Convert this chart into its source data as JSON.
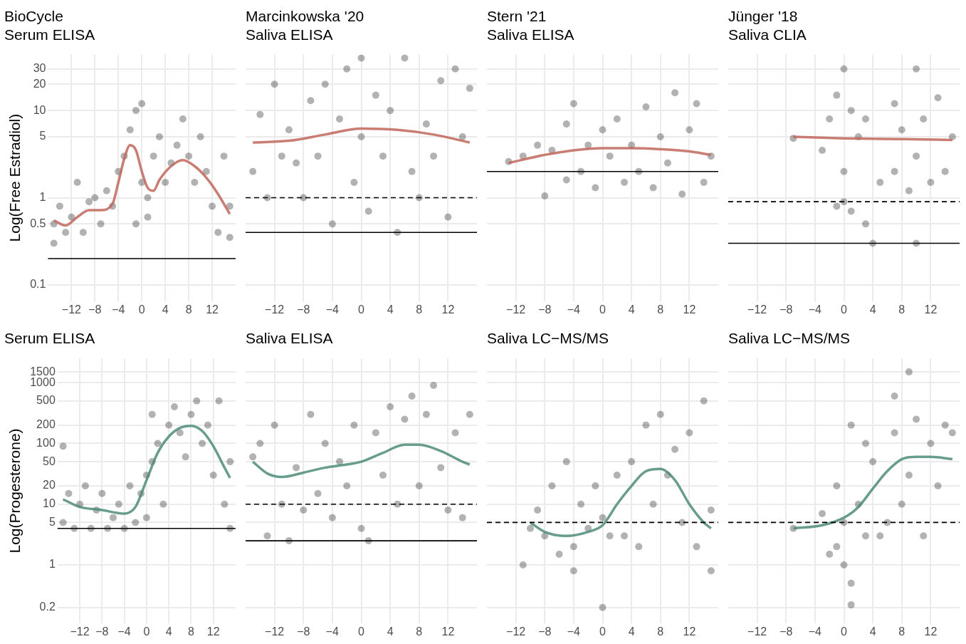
{
  "chart_data": [
    {
      "type": "scatter",
      "title": "BioCycle\nSerum ELISA",
      "ylabel": "Log(Free Estradiol)",
      "log": "y",
      "grid": true,
      "xlim": [
        -16,
        16
      ],
      "xticks": [
        {
          "value": -12,
          "label": "−12"
        },
        {
          "value": -8,
          "label": "−8"
        },
        {
          "value": -4,
          "label": "−4"
        },
        0,
        4,
        8,
        12
      ],
      "ylim": [
        0.065,
        44
      ],
      "yticks": [
        0.1,
        0.5,
        1,
        5,
        10,
        20,
        30
      ],
      "series": [
        {
          "marker": "circle",
          "color": "#000000",
          "x": [
            -15,
            -15,
            -14,
            -13,
            -12,
            -11,
            -10,
            -9,
            -8,
            -7,
            -6,
            -5,
            -4,
            -3,
            -2,
            -1,
            -1,
            0,
            0,
            1,
            1,
            2,
            3,
            4,
            5,
            6,
            7,
            8,
            9,
            10,
            11,
            12,
            13,
            14,
            15,
            15
          ],
          "values": [
            0.5,
            0.3,
            0.8,
            0.4,
            0.6,
            1.5,
            0.4,
            0.9,
            1,
            0.5,
            1.2,
            0.8,
            2,
            3,
            6,
            10,
            0.5,
            12,
            1.5,
            0.6,
            1,
            3,
            5,
            1.5,
            2.5,
            4,
            8,
            3,
            1.5,
            5,
            2,
            0.8,
            0.4,
            3,
            0.8,
            0.35
          ]
        },
        {
          "type": "line",
          "marker": "none",
          "color": "#c0665a",
          "x": [
            -15,
            -13,
            -11,
            -9,
            -7,
            -5,
            -4,
            -3,
            -2,
            -1,
            0,
            1,
            2,
            3,
            5,
            7,
            9,
            11,
            13,
            15
          ],
          "values": [
            0.55,
            0.48,
            0.6,
            0.72,
            0.72,
            0.85,
            1.5,
            2.8,
            4,
            3.5,
            2,
            1.3,
            1.2,
            1.6,
            2.3,
            2.7,
            2.3,
            1.7,
            1.1,
            0.65
          ]
        }
      ],
      "ref_lines": [
        {
          "axis": "y",
          "value": 0.2,
          "line_style": "solid"
        }
      ]
    },
    {
      "type": "scatter",
      "title": "Marcinkowska '20\nSaliva ELISA",
      "log": "y",
      "grid": true,
      "tick_labels": "x",
      "xlim": [
        -16,
        16
      ],
      "xticks": [
        {
          "value": -12,
          "label": "−12"
        },
        {
          "value": -8,
          "label": "−8"
        },
        {
          "value": -4,
          "label": "−4"
        },
        0,
        4,
        8,
        12
      ],
      "ylim": [
        0.065,
        44
      ],
      "yticks": [
        0.1,
        0.5,
        1,
        5,
        10,
        20,
        30
      ],
      "series": [
        {
          "marker": "circle",
          "color": "#000000",
          "x": [
            -15,
            -14,
            -13,
            -12,
            -11,
            -10,
            -9,
            -8,
            -7,
            -6,
            -5,
            -4,
            -3,
            -2,
            -1,
            0,
            0,
            1,
            2,
            3,
            4,
            5,
            6,
            7,
            8,
            9,
            10,
            11,
            12,
            13,
            14,
            15
          ],
          "values": [
            2,
            9,
            1,
            20,
            3,
            6,
            2.5,
            1,
            13,
            3,
            20,
            0.5,
            8,
            30,
            1.5,
            40,
            5,
            0.7,
            15,
            3,
            10,
            0.4,
            40,
            2,
            1,
            7,
            3,
            22,
            0.6,
            30,
            5,
            18
          ]
        },
        {
          "type": "line",
          "marker": "none",
          "color": "#c0665a",
          "x": [
            -15,
            -10,
            -5,
            0,
            5,
            10,
            15
          ],
          "values": [
            4.3,
            4.5,
            5.3,
            6.2,
            6,
            5.3,
            4.3
          ]
        }
      ],
      "ref_lines": [
        {
          "axis": "y",
          "value": 1,
          "line_style": "dashed"
        },
        {
          "axis": "y",
          "value": 0.4,
          "line_style": "solid"
        }
      ]
    },
    {
      "type": "scatter",
      "title": "Stern '21\nSaliva ELISA",
      "log": "y",
      "grid": true,
      "tick_labels": "x",
      "xlim": [
        -16,
        16
      ],
      "xticks": [
        {
          "value": -12,
          "label": "−12"
        },
        {
          "value": -8,
          "label": "−8"
        },
        {
          "value": -4,
          "label": "−4"
        },
        0,
        4,
        8,
        12
      ],
      "ylim": [
        0.065,
        44
      ],
      "yticks": [
        0.1,
        0.5,
        1,
        5,
        10,
        20,
        30
      ],
      "series": [
        {
          "marker": "circle",
          "color": "#000000",
          "x": [
            -13,
            -11,
            -9,
            -8,
            -7,
            -5,
            -5,
            -4,
            -3,
            -2,
            -1,
            0,
            1,
            2,
            3,
            4,
            5,
            6,
            7,
            8,
            9,
            10,
            11,
            12,
            13,
            14,
            15
          ],
          "values": [
            2.6,
            3,
            4,
            1.05,
            3.5,
            7,
            1.6,
            12,
            2,
            4,
            1.3,
            6,
            3,
            8,
            1.5,
            4,
            2,
            11,
            1.3,
            5,
            2.5,
            16,
            1.1,
            6,
            12,
            1.5,
            3
          ]
        },
        {
          "type": "line",
          "marker": "none",
          "color": "#c0665a",
          "x": [
            -13,
            -8,
            -4,
            0,
            4,
            8,
            12,
            15
          ],
          "values": [
            2.5,
            3.1,
            3.5,
            3.7,
            3.7,
            3.6,
            3.4,
            3.1
          ]
        }
      ],
      "ref_lines": [
        {
          "axis": "y",
          "value": 2,
          "line_style": "solid"
        }
      ]
    },
    {
      "type": "scatter",
      "title": "Jünger '18\nSaliva CLIA",
      "log": "y",
      "grid": true,
      "tick_labels": "x",
      "xlim": [
        -16,
        16
      ],
      "xticks": [
        {
          "value": -12,
          "label": "−12"
        },
        {
          "value": -8,
          "label": "−8"
        },
        {
          "value": -4,
          "label": "−4"
        },
        0,
        4,
        8,
        12
      ],
      "ylim": [
        0.065,
        44
      ],
      "yticks": [
        0.1,
        0.5,
        1,
        5,
        10,
        20,
        30
      ],
      "series": [
        {
          "marker": "circle",
          "color": "#000000",
          "x": [
            -7,
            -3,
            -2,
            -1,
            -1,
            0,
            0,
            0,
            1,
            1,
            2,
            3,
            3,
            4,
            5,
            7,
            7,
            8,
            9,
            10,
            10,
            10,
            11,
            12,
            13,
            14,
            15
          ],
          "values": [
            4.8,
            3.5,
            8,
            0.8,
            15,
            30,
            2,
            0.9,
            0.7,
            10,
            5,
            0.5,
            8,
            0.3,
            1.5,
            12,
            2,
            6,
            1.2,
            30,
            0.3,
            3,
            8,
            1.5,
            14,
            2,
            5
          ]
        },
        {
          "type": "line",
          "marker": "none",
          "color": "#c0665a",
          "x": [
            -7,
            0,
            8,
            15
          ],
          "values": [
            5,
            4.8,
            4.7,
            4.6
          ]
        }
      ],
      "ref_lines": [
        {
          "axis": "y",
          "value": 0.9,
          "line_style": "dashed"
        },
        {
          "axis": "y",
          "value": 0.3,
          "line_style": "solid"
        }
      ]
    },
    {
      "type": "scatter",
      "title": "Serum ELISA",
      "ylabel": "Log(Progesterone)",
      "log": "y",
      "grid": true,
      "xlim": [
        -16,
        16
      ],
      "xticks": [
        {
          "value": -12,
          "label": "−12"
        },
        {
          "value": -8,
          "label": "−8"
        },
        {
          "value": -4,
          "label": "−4"
        },
        0,
        4,
        8,
        12
      ],
      "ylim": [
        0.11,
        2500
      ],
      "yticks": [
        0.2,
        1,
        5,
        10,
        20,
        50,
        100,
        200,
        500,
        1000,
        1500
      ],
      "series": [
        {
          "marker": "circle",
          "color": "#000000",
          "x": [
            -15,
            -15,
            -14,
            -13,
            -12,
            -11,
            -10,
            -9,
            -8,
            -7,
            -6,
            -5,
            -4,
            -3,
            -2,
            -1,
            0,
            0,
            1,
            1,
            2,
            3,
            4,
            5,
            6,
            7,
            8,
            9,
            10,
            11,
            12,
            13,
            14,
            15,
            15
          ],
          "values": [
            90,
            5,
            15,
            4,
            10,
            20,
            4,
            8,
            15,
            4,
            6,
            10,
            4,
            20,
            5,
            15,
            30,
            6,
            50,
            300,
            100,
            10,
            200,
            400,
            150,
            60,
            300,
            500,
            100,
            200,
            30,
            500,
            10,
            50,
            4
          ]
        },
        {
          "type": "line",
          "marker": "none",
          "color": "#4d8c7a",
          "x": [
            -15,
            -12,
            -8,
            -4,
            -2,
            0,
            2,
            4,
            6,
            8,
            10,
            12,
            14,
            15
          ],
          "values": [
            12,
            9,
            8,
            7,
            9,
            25,
            70,
            130,
            180,
            195,
            160,
            90,
            40,
            27
          ]
        }
      ],
      "ref_lines": [
        {
          "axis": "y",
          "value": 4,
          "line_style": "solid"
        }
      ]
    },
    {
      "type": "scatter",
      "title": "Saliva ELISA",
      "log": "y",
      "grid": true,
      "tick_labels": "x",
      "xlim": [
        -16,
        16
      ],
      "xticks": [
        {
          "value": -12,
          "label": "−12"
        },
        {
          "value": -8,
          "label": "−8"
        },
        {
          "value": -4,
          "label": "−4"
        },
        0,
        4,
        8,
        12
      ],
      "ylim": [
        0.11,
        2500
      ],
      "yticks": [
        0.2,
        1,
        5,
        10,
        20,
        50,
        100,
        200,
        500,
        1000,
        1500
      ],
      "series": [
        {
          "marker": "circle",
          "color": "#000000",
          "x": [
            -15,
            -14,
            -13,
            -12,
            -11,
            -10,
            -9,
            -8,
            -7,
            -6,
            -5,
            -4,
            -3,
            -2,
            -1,
            0,
            1,
            2,
            3,
            4,
            5,
            6,
            7,
            8,
            9,
            10,
            11,
            12,
            13,
            14,
            15
          ],
          "values": [
            60,
            100,
            3,
            200,
            10,
            2.5,
            40,
            8,
            300,
            15,
            100,
            6,
            50,
            20,
            200,
            4,
            2.5,
            150,
            30,
            400,
            10,
            250,
            600,
            20,
            300,
            900,
            40,
            8,
            150,
            6,
            300
          ]
        },
        {
          "type": "line",
          "marker": "none",
          "color": "#4d8c7a",
          "x": [
            -15,
            -13,
            -11,
            -8,
            -5,
            -2,
            0,
            3,
            6,
            8,
            11,
            14,
            15
          ],
          "values": [
            50,
            32,
            28,
            33,
            40,
            45,
            50,
            70,
            95,
            95,
            75,
            50,
            45
          ]
        }
      ],
      "ref_lines": [
        {
          "axis": "y",
          "value": 10,
          "line_style": "dashed"
        },
        {
          "axis": "y",
          "value": 2.5,
          "line_style": "solid"
        }
      ]
    },
    {
      "type": "scatter",
      "title": "Saliva LC−MS/MS",
      "log": "y",
      "grid": true,
      "tick_labels": "x",
      "xlim": [
        -16,
        16
      ],
      "xticks": [
        {
          "value": -12,
          "label": "−12"
        },
        {
          "value": -8,
          "label": "−8"
        },
        {
          "value": -4,
          "label": "−4"
        },
        0,
        4,
        8,
        12
      ],
      "ylim": [
        0.11,
        2500
      ],
      "yticks": [
        0.2,
        1,
        5,
        10,
        20,
        50,
        100,
        200,
        500,
        1000,
        1500
      ],
      "series": [
        {
          "marker": "circle",
          "color": "#000000",
          "x": [
            -11,
            -10,
            -9,
            -8,
            -7,
            -6,
            -5,
            -4,
            -4,
            -3,
            -2,
            -1,
            0,
            0,
            1,
            2,
            3,
            4,
            5,
            6,
            7,
            8,
            9,
            10,
            11,
            12,
            13,
            14,
            15,
            15
          ],
          "values": [
            1,
            4,
            8,
            3,
            20,
            1.5,
            50,
            0.8,
            2,
            10,
            4,
            20,
            0.2,
            6,
            3,
            30,
            3,
            50,
            2,
            200,
            10,
            300,
            30,
            80,
            5,
            150,
            2,
            500,
            0.8,
            8
          ]
        },
        {
          "type": "line",
          "marker": "none",
          "color": "#4d8c7a",
          "x": [
            -10,
            -8,
            -5,
            -2,
            0,
            2,
            4,
            6,
            8,
            10,
            12,
            14,
            15
          ],
          "values": [
            5,
            3.5,
            3,
            3.5,
            4.5,
            10,
            20,
            35,
            38,
            25,
            10,
            5,
            4
          ]
        }
      ],
      "ref_lines": [
        {
          "axis": "y",
          "value": 5,
          "line_style": "dashed"
        }
      ]
    },
    {
      "type": "scatter",
      "title": "Saliva LC−MS/MS",
      "log": "y",
      "grid": true,
      "tick_labels": "x",
      "xlim": [
        -16,
        16
      ],
      "xticks": [
        {
          "value": -12,
          "label": "−12"
        },
        {
          "value": -8,
          "label": "−8"
        },
        {
          "value": -4,
          "label": "−4"
        },
        0,
        4,
        8,
        12
      ],
      "ylim": [
        0.11,
        2500
      ],
      "yticks": [
        0.2,
        1,
        5,
        10,
        20,
        50,
        100,
        200,
        500,
        1000,
        1500
      ],
      "series": [
        {
          "marker": "circle",
          "color": "#000000",
          "x": [
            -7,
            -3,
            -2,
            -1,
            -1,
            0,
            0,
            1,
            1,
            1,
            2,
            3,
            3,
            4,
            5,
            6,
            7,
            7,
            8,
            9,
            9,
            10,
            11,
            12,
            13,
            14,
            15
          ],
          "values": [
            4,
            7,
            1.5,
            20,
            2,
            5,
            1,
            200,
            0.5,
            0.22,
            10,
            100,
            3,
            50,
            3,
            5,
            600,
            150,
            10,
            1500,
            30,
            250,
            3,
            100,
            20,
            200,
            150
          ]
        },
        {
          "type": "line",
          "marker": "none",
          "color": "#4d8c7a",
          "x": [
            -7,
            -3,
            0,
            2,
            4,
            6,
            8,
            10,
            12,
            15
          ],
          "values": [
            4,
            4.5,
            6,
            9,
            18,
            35,
            55,
            60,
            60,
            55
          ]
        }
      ],
      "ref_lines": [
        {
          "axis": "y",
          "value": 5,
          "line_style": "dashed"
        }
      ]
    }
  ]
}
